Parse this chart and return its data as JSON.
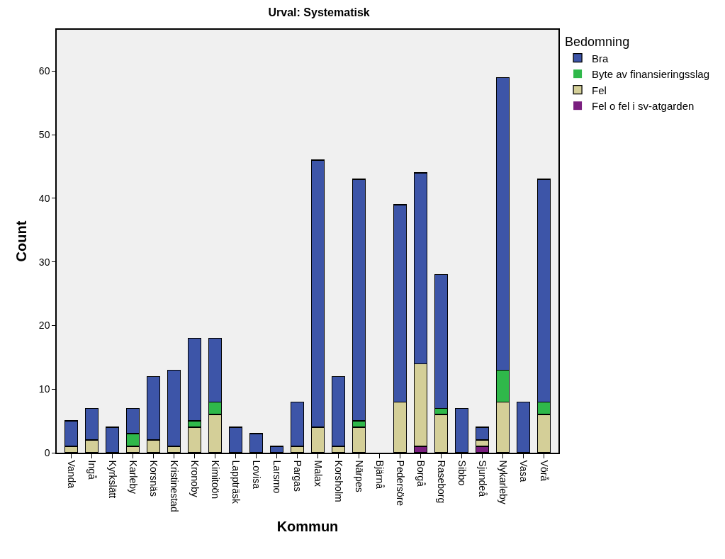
{
  "chart_data": {
    "type": "bar",
    "title": "Urval: Systematisk",
    "xlabel": "Kommun",
    "ylabel": "Count",
    "legend_title": "Bedomning",
    "stacked": true,
    "grid": false,
    "legend": "top right",
    "categories": [
      "Vanda",
      "Ingå",
      "Kyrkslätt",
      "Karleby",
      "Korsnäs",
      "Kristinestad",
      "Kronoby",
      "Kimitoön",
      "Lappträsk",
      "Lovisa",
      "Larsmo",
      "Pargas",
      "Malax",
      "Korsholm",
      "Närpes",
      "Bjärnå",
      "Pedersöre",
      "Borgå",
      "Raseborg",
      "Sibbo",
      "Sjundeå",
      "Nykarleby",
      "Vasa",
      "Vörå"
    ],
    "ylim": [
      0,
      66.5
    ],
    "yticks": [
      0,
      10,
      20,
      30,
      40,
      50,
      60
    ],
    "series": [
      {
        "name": "Fel o fel i sv-atgarden",
        "color": "#7a1f7f",
        "values": [
          0,
          0,
          0,
          0,
          0,
          0,
          0,
          0,
          0,
          0,
          0,
          0,
          0,
          0,
          0,
          0,
          0,
          1,
          0,
          0,
          1,
          0,
          0,
          0
        ]
      },
      {
        "name": "Fel",
        "color": "#d4cf98",
        "values": [
          1,
          2,
          0,
          1,
          2,
          1,
          4,
          6,
          0,
          0,
          0,
          1,
          4,
          1,
          4,
          0,
          8,
          13,
          6,
          0,
          1,
          8,
          0,
          6
        ]
      },
      {
        "name": "Byte av finansieringsslag",
        "color": "#2fb84a",
        "values": [
          0,
          0,
          0,
          2,
          0,
          0,
          1,
          2,
          0,
          0,
          0,
          0,
          0,
          0,
          1,
          0,
          0,
          0,
          1,
          0,
          0,
          5,
          0,
          2
        ]
      },
      {
        "name": "Bra",
        "color": "#3d55a8",
        "values": [
          4,
          5,
          4,
          4,
          10,
          12,
          13,
          10,
          4,
          3,
          1,
          7,
          42,
          11,
          38,
          0,
          31,
          30,
          21,
          7,
          2,
          46,
          8,
          35
        ]
      }
    ]
  }
}
